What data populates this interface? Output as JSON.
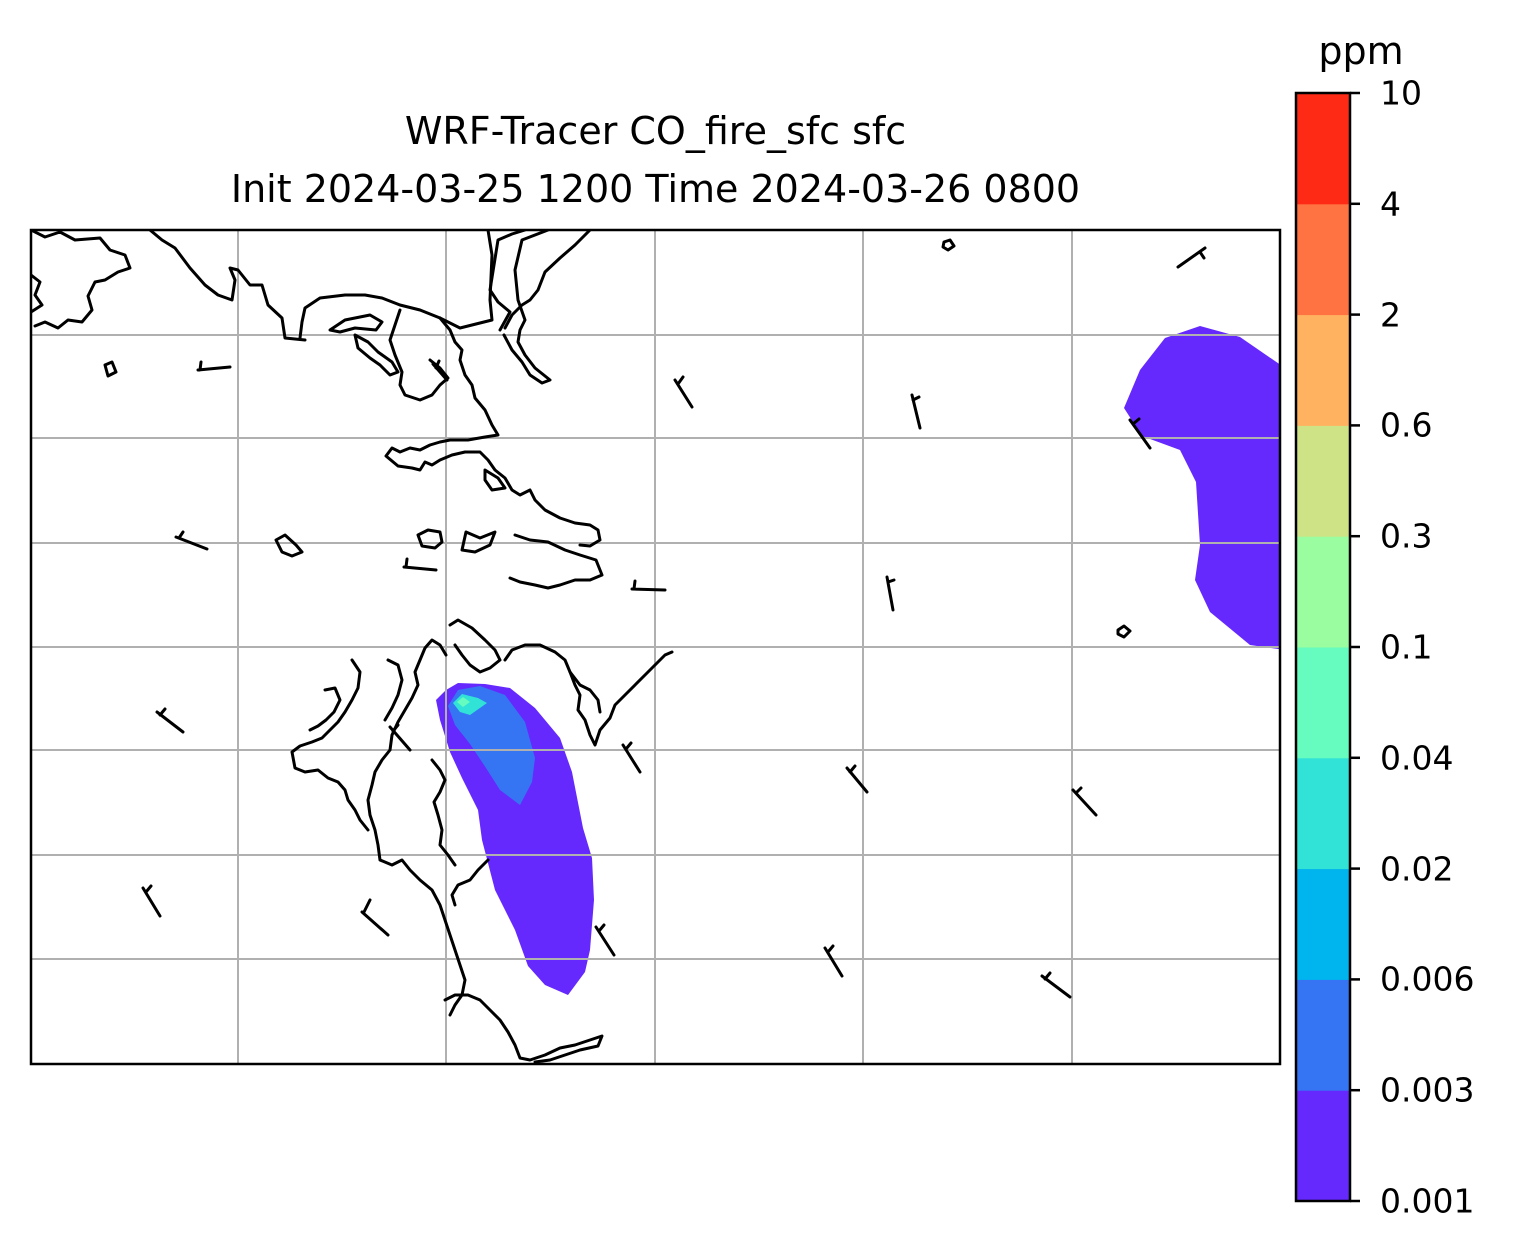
{
  "map": {
    "title": "WRF-Tracer CO_fire_sfc sfc",
    "subtitle": "Init 2024-03-25 1200 Time 2024-03-26 0800",
    "variable": "CO_fire_sfc",
    "level": "sfc",
    "init_time": "2024-03-25 1200",
    "valid_time": "2024-03-26 0800",
    "gridlines": true,
    "overlays": [
      "coastlines",
      "wind-barbs",
      "filled-contours",
      "gridlines"
    ]
  },
  "colorbar": {
    "units": "ppm",
    "orientation": "vertical",
    "position": "right",
    "levels": [
      "0.001",
      "0.003",
      "0.006",
      "0.02",
      "0.04",
      "0.1",
      "0.3",
      "0.6",
      "2",
      "4",
      "10"
    ],
    "colors": [
      "#6529fd",
      "#3575f4",
      "#00b4ee",
      "#31e2d7",
      "#66fcbf",
      "#9afd9f",
      "#cde385",
      "#ffb360",
      "#ff7241",
      "#ff2a15"
    ]
  },
  "colors": {
    "coastline": "#000000",
    "gridline": "#b0b0b0",
    "frame": "#000000",
    "plume_low": "#6529fd",
    "plume_mid": "#3575f4",
    "plume_high": "#31e2d7"
  }
}
